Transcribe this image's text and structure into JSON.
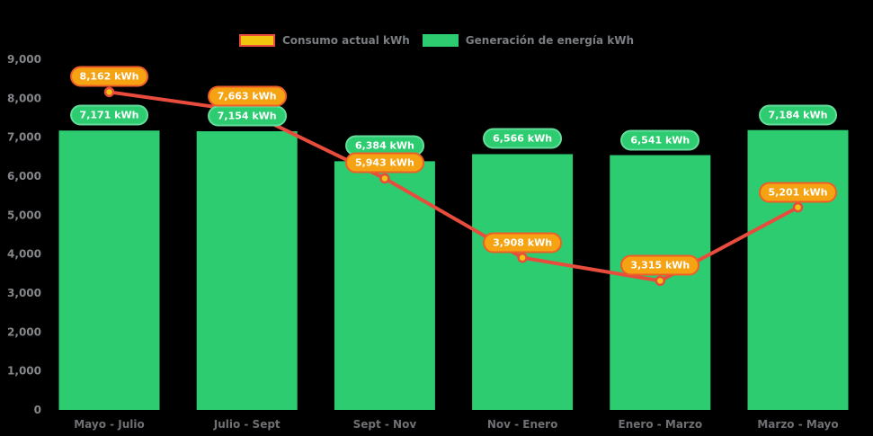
{
  "legend": {
    "items": [
      {
        "label": "Consumo actual kWh",
        "swatch_fill": "#f1c40f",
        "swatch_border": "#e74c3c"
      },
      {
        "label": "Generación de energía kWh",
        "swatch_fill": "#2ecc71",
        "swatch_border": "#2ecc71"
      }
    ]
  },
  "chart_data": {
    "type": "bar+line",
    "title": "",
    "xlabel": "",
    "ylabel": "",
    "background": "#000000",
    "grid": false,
    "legend_position": "top",
    "categories": [
      "Mayo - Julio",
      "Julio - Sept",
      "Sept - Nov",
      "Nov - Enero",
      "Enero - Marzo",
      "Marzo - Mayo"
    ],
    "series": [
      {
        "name": "Consumo actual kWh",
        "type": "line",
        "color": "#e74c3c",
        "point_fill": "#f1c40f",
        "point_stroke": "#e74c3c",
        "values": [
          8162,
          7663,
          5943,
          3908,
          3315,
          5201
        ],
        "labels": [
          "8,162 kWh",
          "7,663 kWh",
          "5,943 kWh",
          "3,908 kWh",
          "3,315 kWh",
          "5,201 kWh"
        ]
      },
      {
        "name": "Generación de energía kWh",
        "type": "bar",
        "color": "#2ecc71",
        "values": [
          7171,
          7154,
          6384,
          6566,
          6541,
          7184
        ],
        "labels": [
          "7,171 kWh",
          "7,154 kWh",
          "6,384 kWh",
          "6,566 kWh",
          "6,541 kWh",
          "7,184 kWh"
        ]
      }
    ],
    "ylim": [
      0,
      9000
    ],
    "yticks": [
      0,
      1000,
      2000,
      3000,
      4000,
      5000,
      6000,
      7000,
      8000,
      9000
    ],
    "ytick_labels": [
      "0",
      "1,000",
      "2,000",
      "3,000",
      "4,000",
      "5,000",
      "6,000",
      "7,000",
      "8,000",
      "9,000"
    ]
  },
  "badge_styles": {
    "orange": {
      "fill": "#f5a312",
      "border": "#ef5e27",
      "text": "#ffffff"
    },
    "green": {
      "fill": "#2ecc71",
      "border": "#63dd9a",
      "text": "#ffffff"
    }
  },
  "axis": {
    "tick_color": "#85878a",
    "category_color": "#6e7073"
  }
}
